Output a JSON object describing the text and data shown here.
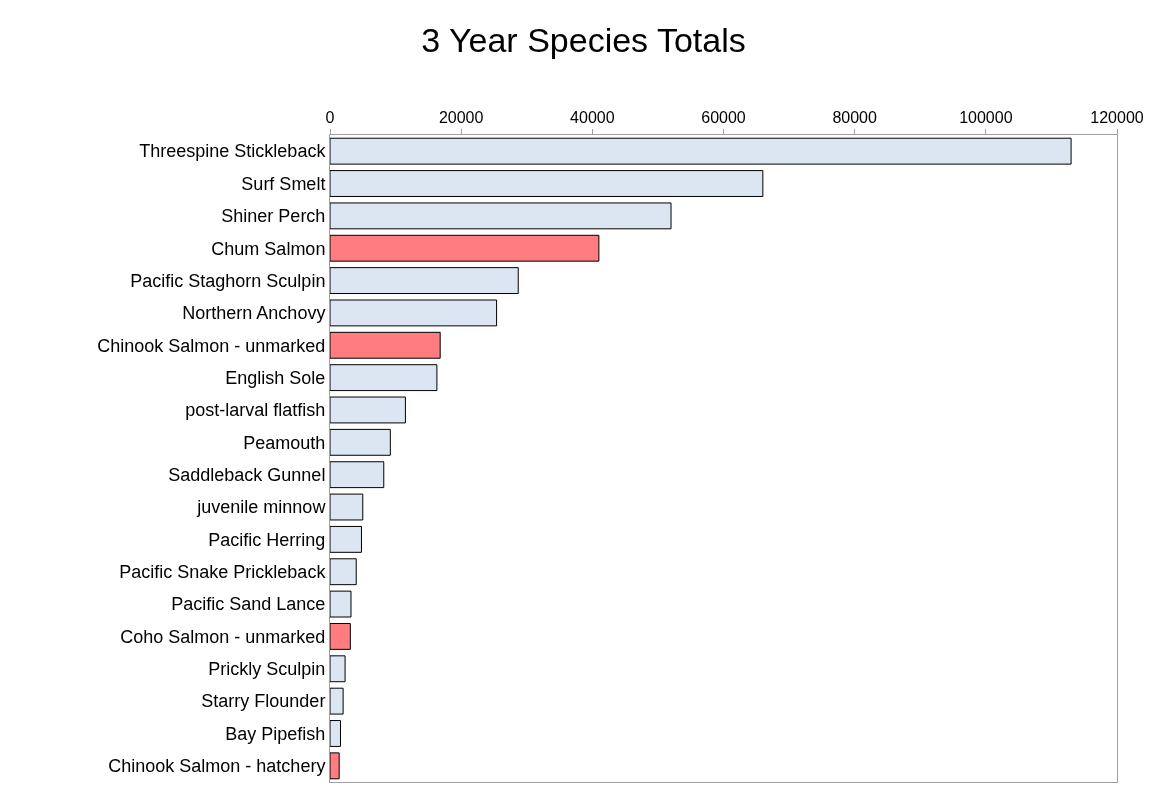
{
  "chart_data": {
    "type": "bar",
    "orientation": "horizontal",
    "title": "3 Year Species Totals",
    "categories": [
      "Threespine Stickleback",
      "Surf Smelt",
      "Shiner Perch",
      "Chum Salmon",
      "Pacific Staghorn Sculpin",
      "Northern Anchovy",
      "Chinook Salmon - unmarked",
      "English Sole",
      "post-larval flatfish",
      "Peamouth",
      "Saddleback Gunnel",
      "juvenile minnow",
      "Pacific Herring",
      "Pacific Snake Prickleback",
      "Pacific Sand Lance",
      "Coho Salmon - unmarked",
      "Prickly Sculpin",
      "Starry Flounder",
      "Bay Pipefish",
      "Chinook Salmon - hatchery"
    ],
    "values": [
      113000,
      66000,
      52000,
      41000,
      28700,
      25400,
      16800,
      16300,
      11500,
      9200,
      8200,
      5000,
      4800,
      4000,
      3200,
      3100,
      2300,
      2000,
      1600,
      1400
    ],
    "colors": [
      "#dce6f2",
      "#dce6f2",
      "#dce6f2",
      "#ff7c80",
      "#dce6f2",
      "#dce6f2",
      "#ff7c80",
      "#dce6f2",
      "#dce6f2",
      "#dce6f2",
      "#dce6f2",
      "#dce6f2",
      "#dce6f2",
      "#dce6f2",
      "#dce6f2",
      "#ff7c80",
      "#dce6f2",
      "#dce6f2",
      "#dce6f2",
      "#ff7c80"
    ],
    "xlim": [
      0,
      120000
    ],
    "xticks": [
      0,
      20000,
      40000,
      60000,
      80000,
      100000,
      120000
    ],
    "grid": false,
    "legend": false
  }
}
